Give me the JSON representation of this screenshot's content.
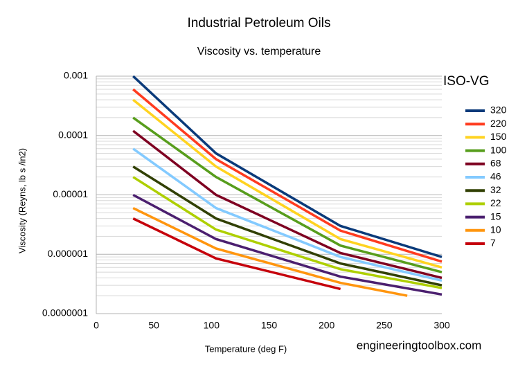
{
  "chart_data": {
    "type": "line",
    "title": "Industrial Petroleum Oils",
    "subtitle": "Viscosity vs. temperature",
    "x_label": "Temperature (deg F)",
    "y_label": "Viscosity (Reyns, lb s /in2)",
    "legend_title": "ISO-VG",
    "watermark": "engineeringtoolbox.com",
    "log_y": true,
    "grid": true,
    "legend": "right",
    "xlim": [
      0,
      300
    ],
    "xticks": [
      0,
      50,
      100,
      150,
      200,
      250,
      300
    ],
    "ylim": [
      1e-07,
      0.001
    ],
    "yticks": [
      {
        "value": 0.001,
        "label": "0.001"
      },
      {
        "value": 0.0001,
        "label": "0.0001"
      },
      {
        "value": 1e-05,
        "label": "0.00001"
      },
      {
        "value": 1e-06,
        "label": "0.000001"
      },
      {
        "value": 1e-07,
        "label": "0.0000001"
      }
    ],
    "series": [
      {
        "name": "320",
        "color": "#0a3a7a",
        "x": [
          32,
          104,
          212,
          300
        ],
        "values": [
          0.001,
          5e-05,
          3e-06,
          9e-07
        ]
      },
      {
        "name": "220",
        "color": "#ff3b1f",
        "x": [
          32,
          104,
          212,
          300
        ],
        "values": [
          0.0006,
          4e-05,
          2.5e-06,
          7.5e-07
        ]
      },
      {
        "name": "150",
        "color": "#ffd320",
        "x": [
          32,
          104,
          212,
          300
        ],
        "values": [
          0.0004,
          3e-05,
          1.8e-06,
          6e-07
        ]
      },
      {
        "name": "100",
        "color": "#579d1c",
        "x": [
          32,
          104,
          212,
          300
        ],
        "values": [
          0.0002,
          2e-05,
          1.4e-06,
          5e-07
        ]
      },
      {
        "name": "68",
        "color": "#7e0021",
        "x": [
          32,
          104,
          212,
          300
        ],
        "values": [
          0.00012,
          1e-05,
          1.05e-06,
          4e-07
        ]
      },
      {
        "name": "46",
        "color": "#83caff",
        "x": [
          32,
          104,
          212,
          300
        ],
        "values": [
          6e-05,
          6e-06,
          9e-07,
          3.6e-07
        ]
      },
      {
        "name": "32",
        "color": "#314004",
        "x": [
          32,
          104,
          212,
          300
        ],
        "values": [
          3e-05,
          4e-06,
          7e-07,
          3e-07
        ]
      },
      {
        "name": "22",
        "color": "#aecf00",
        "x": [
          32,
          104,
          212,
          300
        ],
        "values": [
          2e-05,
          2.6e-06,
          5.6e-07,
          2.7e-07
        ]
      },
      {
        "name": "15",
        "color": "#4b1f6f",
        "x": [
          32,
          104,
          212,
          300
        ],
        "values": [
          1e-05,
          1.8e-06,
          4.2e-07,
          2.1e-07
        ]
      },
      {
        "name": "10",
        "color": "#ff950e",
        "x": [
          32,
          104,
          212,
          270
        ],
        "values": [
          6e-06,
          1.25e-06,
          3.3e-07,
          2e-07
        ]
      },
      {
        "name": "7",
        "color": "#c5000b",
        "x": [
          32,
          104,
          212
        ],
        "values": [
          4e-06,
          8.5e-07,
          2.6e-07
        ]
      }
    ]
  }
}
